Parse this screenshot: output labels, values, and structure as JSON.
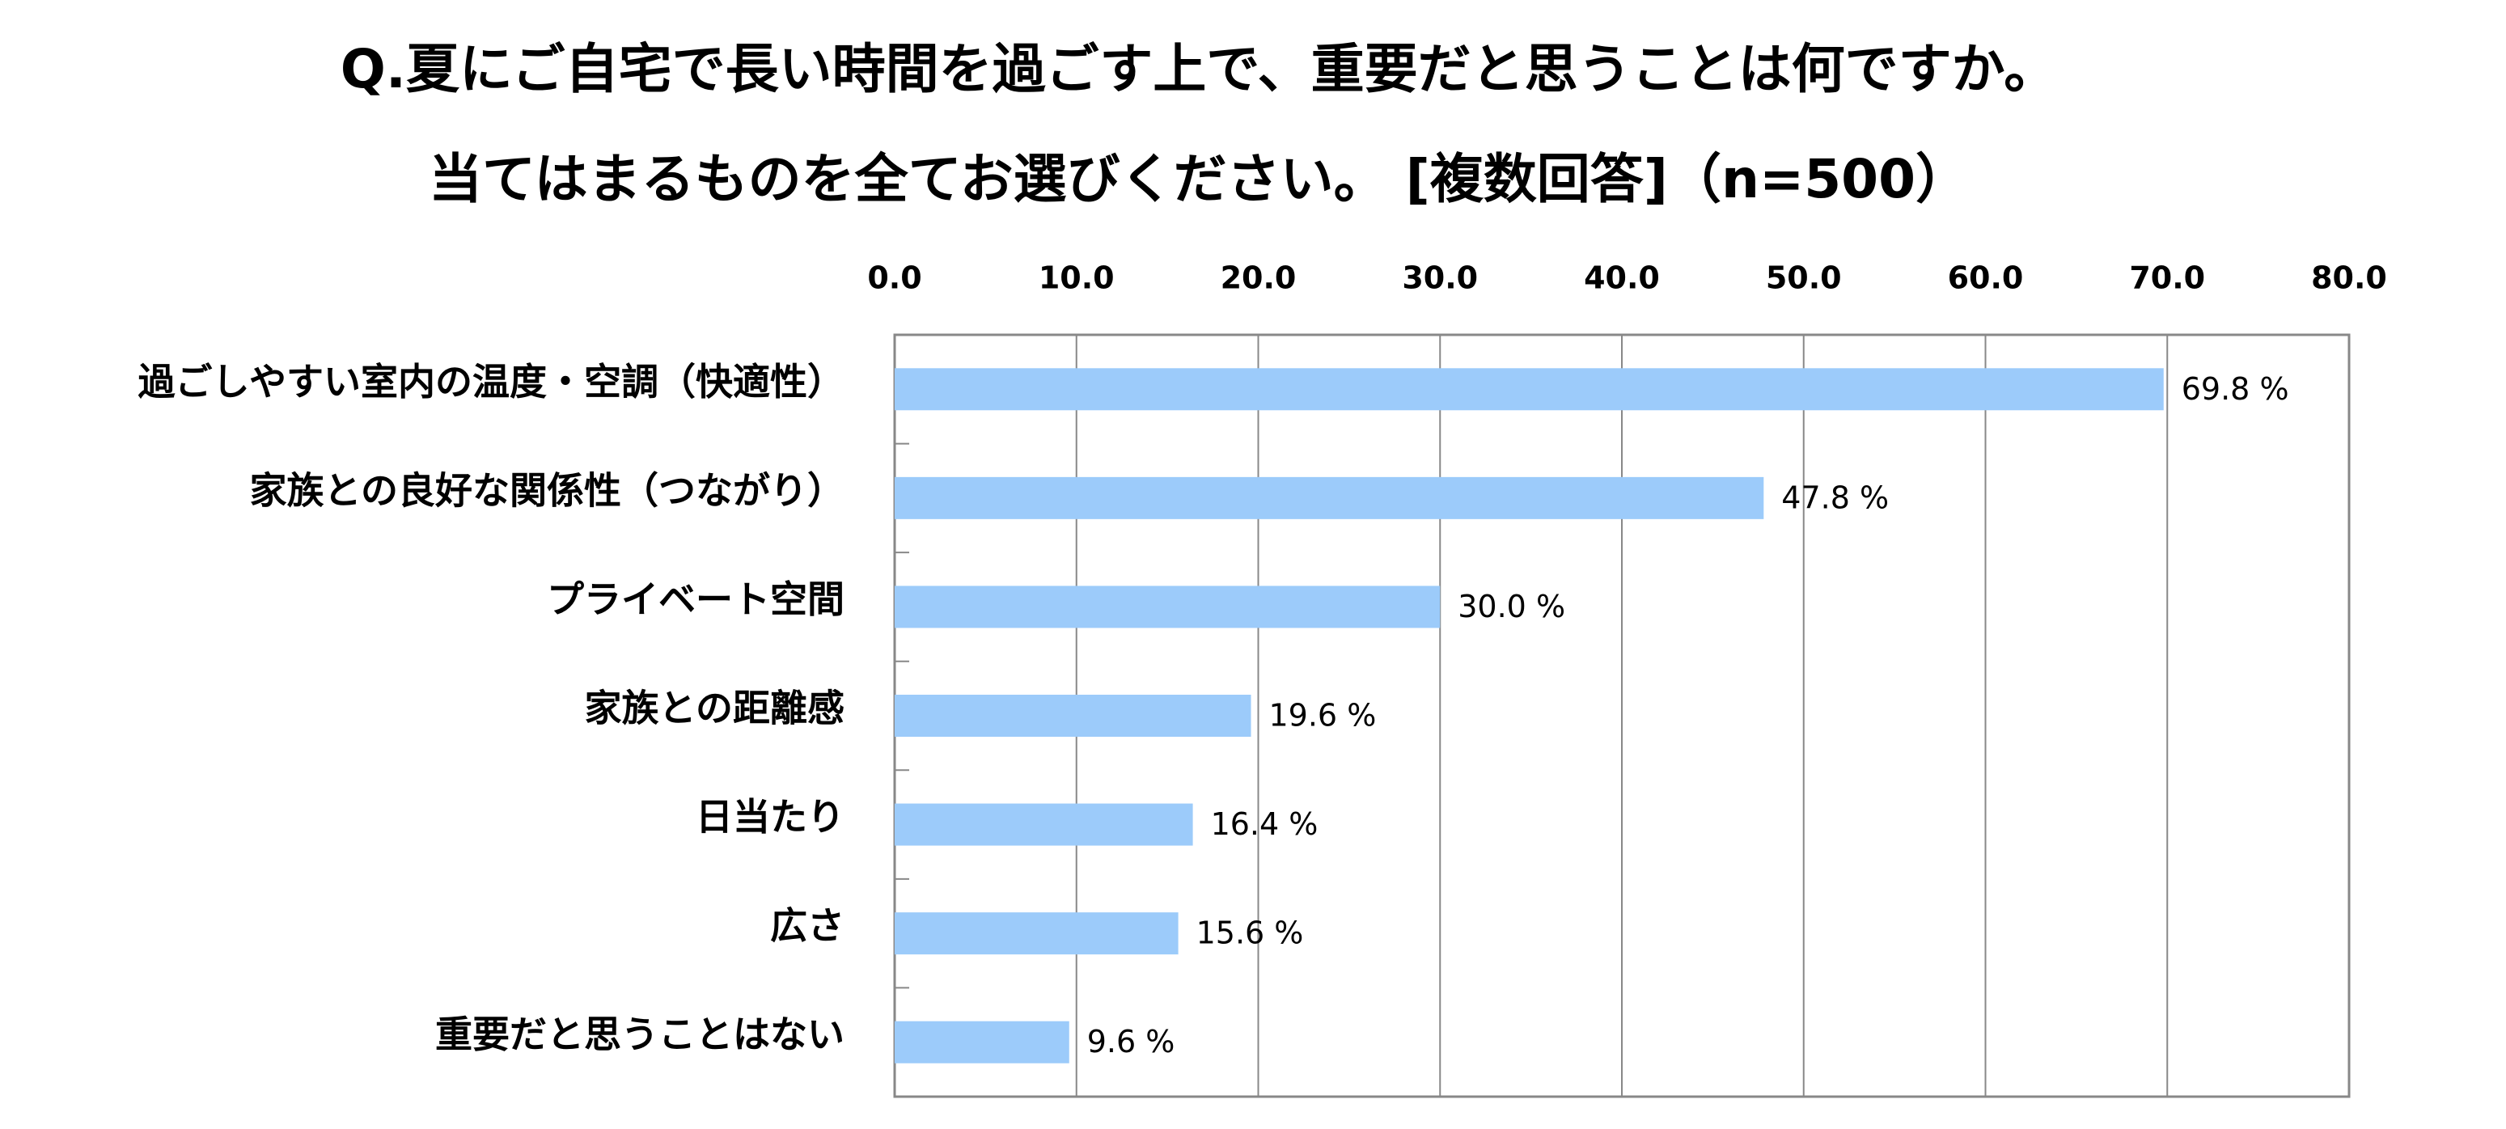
{
  "chart_data": {
    "type": "barh",
    "title": "Q.夏にご自宅で長い時間を過ごす上で、重要だと思うことは何ですか。",
    "subtitle": "当てはまるものを全てお選びください。 [複数回答]（n=500）",
    "categories": [
      "過ごしやすい室内の温度・空調（快適性）",
      "家族との良好な関係性（つながり）",
      "プライベート空間",
      "家族との距離感",
      "日当たり",
      "広さ",
      "重要だと思うことはない"
    ],
    "values": [
      69.8,
      47.8,
      30.0,
      19.6,
      16.4,
      15.6,
      9.6
    ],
    "value_labels": [
      "69.8 %",
      "47.8 %",
      "30.0 %",
      "19.6 %",
      "16.4 %",
      "15.6 %",
      "9.6 %"
    ],
    "color": "#9ccbfa",
    "xlim": [
      0,
      80
    ],
    "xticks": [
      {
        "value": 0,
        "label": "0.0"
      },
      {
        "value": 10,
        "label": "10.0"
      },
      {
        "value": 20,
        "label": "20.0"
      },
      {
        "value": 30,
        "label": "30.0"
      },
      {
        "value": 40,
        "label": "40.0"
      },
      {
        "value": 50,
        "label": "50.0"
      },
      {
        "value": 60,
        "label": "60.0"
      },
      {
        "value": 70,
        "label": "70.0"
      },
      {
        "value": 80,
        "label": "80.0"
      }
    ],
    "grid": true
  }
}
